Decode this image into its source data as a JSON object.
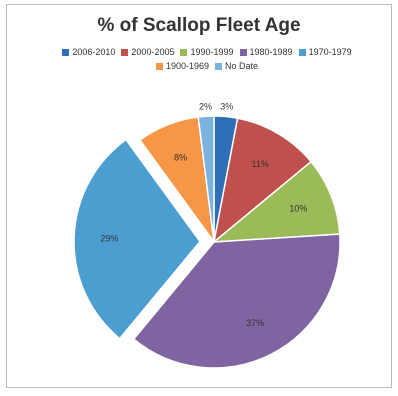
{
  "chart_data": {
    "type": "pie",
    "title": "% of Scallop Fleet Age",
    "legend_position": "top",
    "categories": [
      "2006-2010",
      "2000-2005",
      "1990-1999",
      "1980-1989",
      "1970-1979",
      "1900-1969",
      "No Date"
    ],
    "values": [
      3,
      11,
      10,
      37,
      29,
      8,
      2
    ],
    "labels": [
      "3%",
      "11%",
      "10%",
      "37%",
      "29%",
      "8%",
      "2%"
    ],
    "colors": [
      "#2e6fba",
      "#c0504d",
      "#9bbb59",
      "#8064a2",
      "#4b9fd0",
      "#f79646",
      "#7bb3e0"
    ],
    "exploded": [
      false,
      false,
      false,
      false,
      true,
      false,
      false
    ]
  }
}
